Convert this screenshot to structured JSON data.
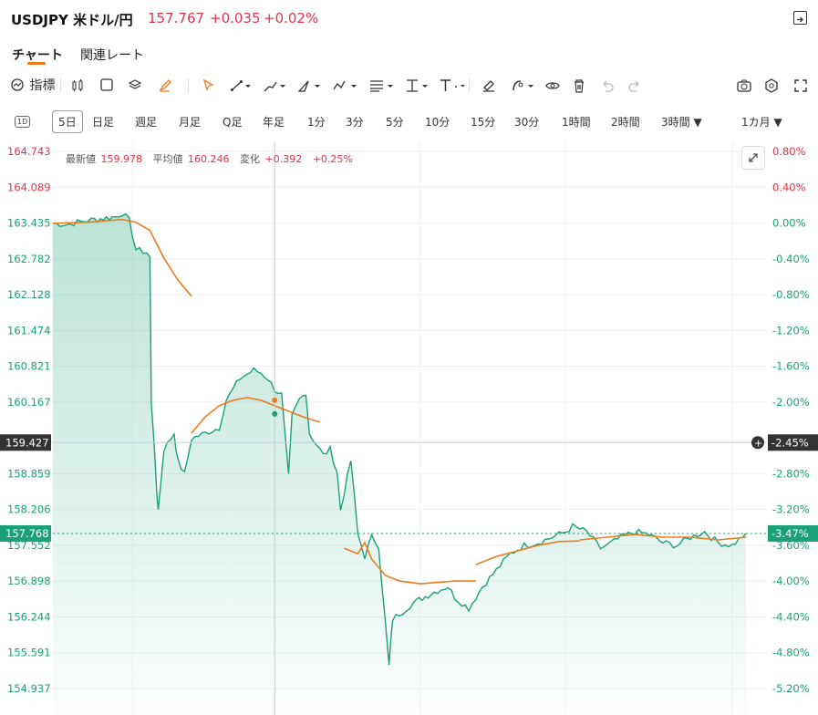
{
  "header": {
    "symbol": "USDJPY 米ドル/円",
    "price": "157.767",
    "change": "+0.035",
    "change_pct": "+0.02%"
  },
  "tabs": [
    {
      "label": "チャート",
      "active": true
    },
    {
      "label": "関連レート",
      "active": false
    }
  ],
  "toolbar": {
    "indicators_label": "指標"
  },
  "ranges": {
    "one_day_icon": "1D",
    "items": [
      "5日",
      "日足",
      "週足",
      "月足",
      "Q足",
      "年足",
      "1分",
      "3分",
      "5分",
      "10分",
      "15分",
      "30分",
      "1時間",
      "2時間",
      "3時間"
    ],
    "active": "5日",
    "period": "1カ月"
  },
  "info": {
    "latest_label": "最新値",
    "latest_value": "159.978",
    "avg_label": "平均値",
    "avg_value": "160.246",
    "change_label": "変化",
    "change_value": "+0.392",
    "change_pct": "+0.25%"
  },
  "colors": {
    "up": "#1aa179",
    "down": "#e0344a",
    "avg_line": "#f07a1a",
    "accent": "#f07a1a"
  },
  "chart_data": {
    "type": "area",
    "y_left_ticks": [
      "164.743",
      "164.089",
      "163.435",
      "162.782",
      "162.128",
      "161.474",
      "160.821",
      "160.167",
      "159.427",
      "158.859",
      "158.206",
      "157.768",
      "157.552",
      "156.898",
      "156.244",
      "155.591",
      "154.937"
    ],
    "y_right_ticks": [
      "0.80%",
      "0.40%",
      "0.00%",
      "-0.40%",
      "-0.80%",
      "-1.20%",
      "-1.60%",
      "-2.00%",
      "-2.45%",
      "-2.80%",
      "-3.20%",
      "-3.47%",
      "-3.60%",
      "-4.00%",
      "-4.40%",
      "-4.80%",
      "-5.20%"
    ],
    "ylim": [
      154.8,
      164.9
    ],
    "reference_price": 163.435,
    "crosshair_price": "159.427",
    "crosshair_pct": "-2.45%",
    "last_price": "157.768",
    "last_pct": "-3.47%",
    "price_series": [
      [
        0,
        163.43
      ],
      [
        0.02,
        163.41
      ],
      [
        0.04,
        163.46
      ],
      [
        0.06,
        163.5
      ],
      [
        0.09,
        163.55
      ],
      [
        0.1,
        163.62
      ],
      [
        0.11,
        163.48
      ],
      [
        0.12,
        162.95
      ],
      [
        0.135,
        162.9
      ],
      [
        0.14,
        162.8
      ],
      [
        0.142,
        160.2
      ],
      [
        0.15,
        158.5
      ],
      [
        0.152,
        158.2
      ],
      [
        0.16,
        159.3
      ],
      [
        0.175,
        159.6
      ],
      [
        0.18,
        159.1
      ],
      [
        0.19,
        158.85
      ],
      [
        0.2,
        159.5
      ],
      [
        0.22,
        159.6
      ],
      [
        0.24,
        159.7
      ],
      [
        0.25,
        160.2
      ],
      [
        0.27,
        160.6
      ],
      [
        0.29,
        160.75
      ],
      [
        0.3,
        160.7
      ],
      [
        0.31,
        160.6
      ],
      [
        0.32,
        160.4
      ],
      [
        0.33,
        160.3
      ],
      [
        0.34,
        158.8
      ],
      [
        0.345,
        159.9
      ],
      [
        0.355,
        160.2
      ],
      [
        0.365,
        160.35
      ],
      [
        0.37,
        159.6
      ],
      [
        0.38,
        159.4
      ],
      [
        0.39,
        159.2
      ],
      [
        0.4,
        159.3
      ],
      [
        0.41,
        158.9
      ],
      [
        0.415,
        158.2
      ],
      [
        0.43,
        159.1
      ],
      [
        0.44,
        157.75
      ],
      [
        0.45,
        157.35
      ],
      [
        0.46,
        157.7
      ],
      [
        0.47,
        157.55
      ],
      [
        0.48,
        156.1
      ],
      [
        0.485,
        155.35
      ],
      [
        0.49,
        156.2
      ],
      [
        0.5,
        156.3
      ],
      [
        0.52,
        156.5
      ],
      [
        0.55,
        156.7
      ],
      [
        0.57,
        156.8
      ],
      [
        0.58,
        156.6
      ],
      [
        0.6,
        156.4
      ],
      [
        0.62,
        156.8
      ],
      [
        0.64,
        157.1
      ],
      [
        0.66,
        157.4
      ],
      [
        0.68,
        157.55
      ],
      [
        0.7,
        157.6
      ],
      [
        0.72,
        157.7
      ],
      [
        0.74,
        157.8
      ],
      [
        0.75,
        157.9
      ],
      [
        0.77,
        157.8
      ],
      [
        0.79,
        157.5
      ],
      [
        0.8,
        157.55
      ],
      [
        0.82,
        157.7
      ],
      [
        0.84,
        157.8
      ],
      [
        0.86,
        157.75
      ],
      [
        0.88,
        157.6
      ],
      [
        0.9,
        157.55
      ],
      [
        0.92,
        157.7
      ],
      [
        0.94,
        157.8
      ],
      [
        0.96,
        157.6
      ],
      [
        0.98,
        157.55
      ],
      [
        1.0,
        157.77
      ]
    ],
    "avg_series_segments": [
      [
        [
          0,
          163.43
        ],
        [
          0.05,
          163.45
        ],
        [
          0.1,
          163.5
        ],
        [
          0.12,
          163.45
        ],
        [
          0.14,
          163.3
        ],
        [
          0.16,
          162.8
        ],
        [
          0.18,
          162.4
        ],
        [
          0.2,
          162.1
        ]
      ],
      [
        [
          0.2,
          159.6
        ],
        [
          0.22,
          159.9
        ],
        [
          0.24,
          160.1
        ],
        [
          0.26,
          160.2
        ],
        [
          0.28,
          160.25
        ],
        [
          0.3,
          160.2
        ],
        [
          0.32,
          160.1
        ],
        [
          0.34,
          160.0
        ],
        [
          0.36,
          159.9
        ],
        [
          0.385,
          159.8
        ]
      ],
      [
        [
          0.42,
          157.5
        ],
        [
          0.44,
          157.4
        ],
        [
          0.45,
          157.6
        ],
        [
          0.46,
          157.3
        ],
        [
          0.48,
          157.0
        ],
        [
          0.5,
          156.9
        ],
        [
          0.53,
          156.85
        ],
        [
          0.56,
          156.88
        ],
        [
          0.58,
          156.9
        ],
        [
          0.61,
          156.9
        ]
      ],
      [
        [
          0.61,
          157.2
        ],
        [
          0.64,
          157.35
        ],
        [
          0.67,
          157.45
        ],
        [
          0.7,
          157.55
        ],
        [
          0.73,
          157.62
        ],
        [
          0.76,
          157.63
        ]
      ],
      [
        [
          0.76,
          157.65
        ],
        [
          0.8,
          157.7
        ],
        [
          0.84,
          157.75
        ],
        [
          0.88,
          157.7
        ],
        [
          0.92,
          157.7
        ],
        [
          0.96,
          157.65
        ],
        [
          1.0,
          157.7
        ]
      ]
    ]
  }
}
